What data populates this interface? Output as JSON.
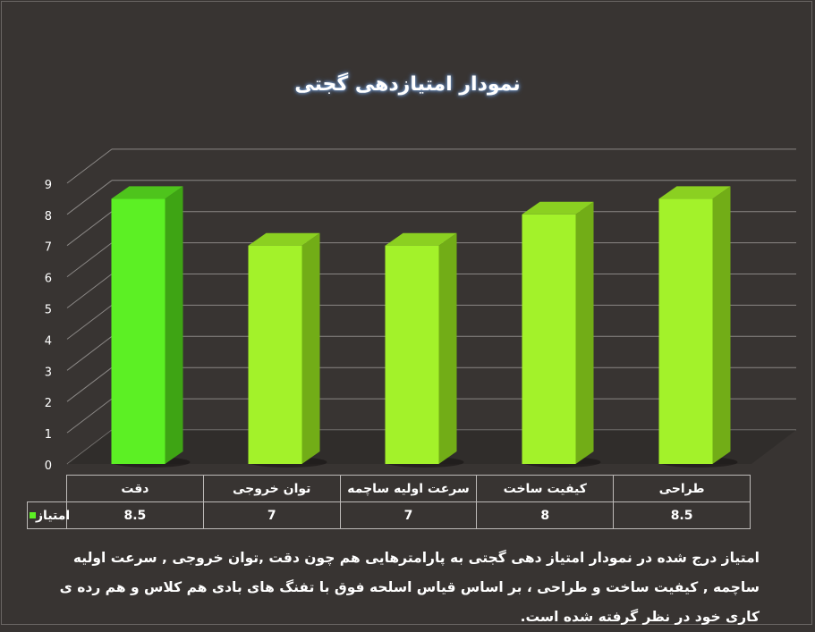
{
  "chart_data": {
    "type": "bar",
    "title": "نمودار امتیازدهی گجتی",
    "categories": [
      "دقت",
      "توان خروجی",
      "سرعت اولیه ساچمه",
      "کیفیت ساخت",
      "طراحی"
    ],
    "series": [
      {
        "name": "امتیاز",
        "values": [
          8.5,
          7,
          7,
          8,
          8.5
        ]
      }
    ],
    "ylim": [
      0,
      9
    ],
    "yticks": [
      0,
      1,
      2,
      3,
      4,
      5,
      6,
      7,
      8,
      9
    ],
    "grid": true,
    "style": "3d-column",
    "colors": {
      "first_bar": "#5cf024",
      "other_bars": "#a3f22a",
      "background": "#383432",
      "gridline": "#8a8785"
    }
  },
  "caption": "امتیاز درج شده در نمودار امتیاز دهی گجتی  به پارامترهایی هم چون دقت ,توان خروجی , سرعت اولیه ساچمه , کیفیت ساخت و طراحی ، بر اساس قیاس اسلحه فوق با تفنگ های بادی هم کلاس و هم رده ی کاری خود در نظر گرفته شده است."
}
